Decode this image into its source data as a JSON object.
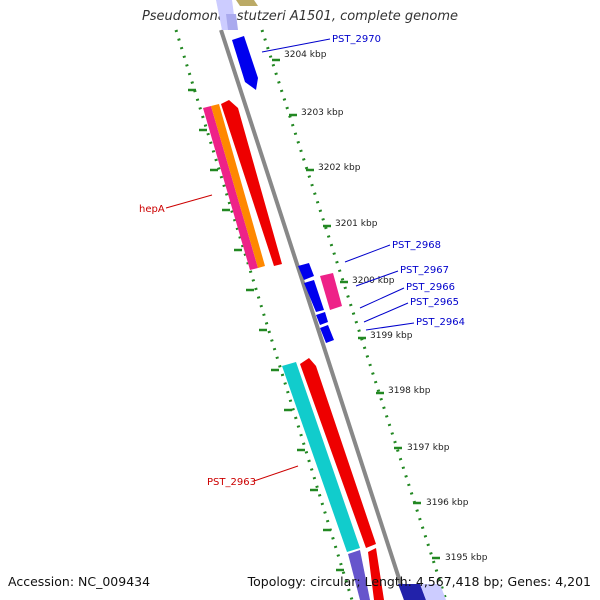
{
  "title": "Pseudomonas stutzeri A1501, complete genome",
  "footer": {
    "accession": "Accession: NC_009434",
    "topology": "Topology: circular; Length: 4,567,418 bp; Genes: 4,201"
  },
  "ticks": [
    "3204 kbp",
    "3203 kbp",
    "3202 kbp",
    "3201 kbp",
    "3200 kbp",
    "3199 kbp",
    "3198 kbp",
    "3197 kbp",
    "3196 kbp",
    "3195 kbp"
  ],
  "gene_labels": {
    "right": [
      "PST_2970",
      "PST_2968",
      "PST_2967",
      "PST_2966",
      "PST_2965",
      "PST_2964"
    ],
    "left": [
      "hepA",
      "PST_2963"
    ]
  },
  "colors": {
    "blue": "#0000ee",
    "red": "#ee0000",
    "magenta": "#ee2288",
    "orange": "#ff8800",
    "cyan": "#11cccc",
    "green_dots": "#228822",
    "backbone": "#888888",
    "label_blue": "#0000cc",
    "label_red": "#cc0000"
  }
}
